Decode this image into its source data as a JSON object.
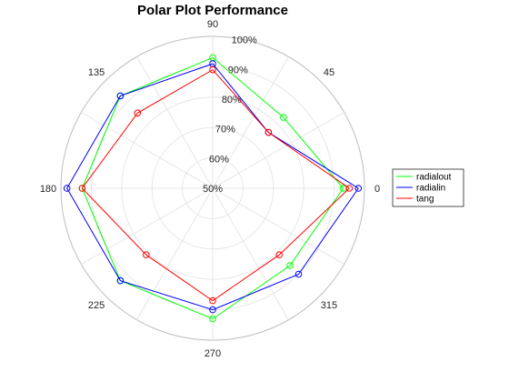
{
  "chart_data": {
    "type": "polar",
    "title": "Polar Plot Performance",
    "theta_ticks_deg": [
      0,
      45,
      90,
      135,
      180,
      225,
      270,
      315
    ],
    "theta_tick_labels": [
      "0",
      "45",
      "90",
      "135",
      "180",
      "225",
      "270",
      "315"
    ],
    "r_ticks": [
      50,
      60,
      70,
      80,
      90,
      100
    ],
    "r_tick_labels": [
      "50%",
      "60%",
      "70%",
      "80%",
      "90%",
      "100%"
    ],
    "r_range": [
      50,
      100
    ],
    "grid": true,
    "legend_position": "right",
    "theta_deg": [
      0,
      45,
      90,
      135,
      180,
      225,
      270,
      315,
      360
    ],
    "series": [
      {
        "name": "radialout",
        "color": "#00ff00",
        "values": [
          93,
          83,
          93,
          93,
          93,
          93,
          93,
          86,
          93
        ]
      },
      {
        "name": "radialin",
        "color": "#0000ff",
        "values": [
          98,
          76,
          91,
          93,
          98,
          93,
          90,
          90,
          98
        ]
      },
      {
        "name": "tang",
        "color": "#ff0000",
        "values": [
          95,
          76,
          89,
          85,
          93,
          81,
          87,
          81,
          95
        ]
      }
    ]
  }
}
